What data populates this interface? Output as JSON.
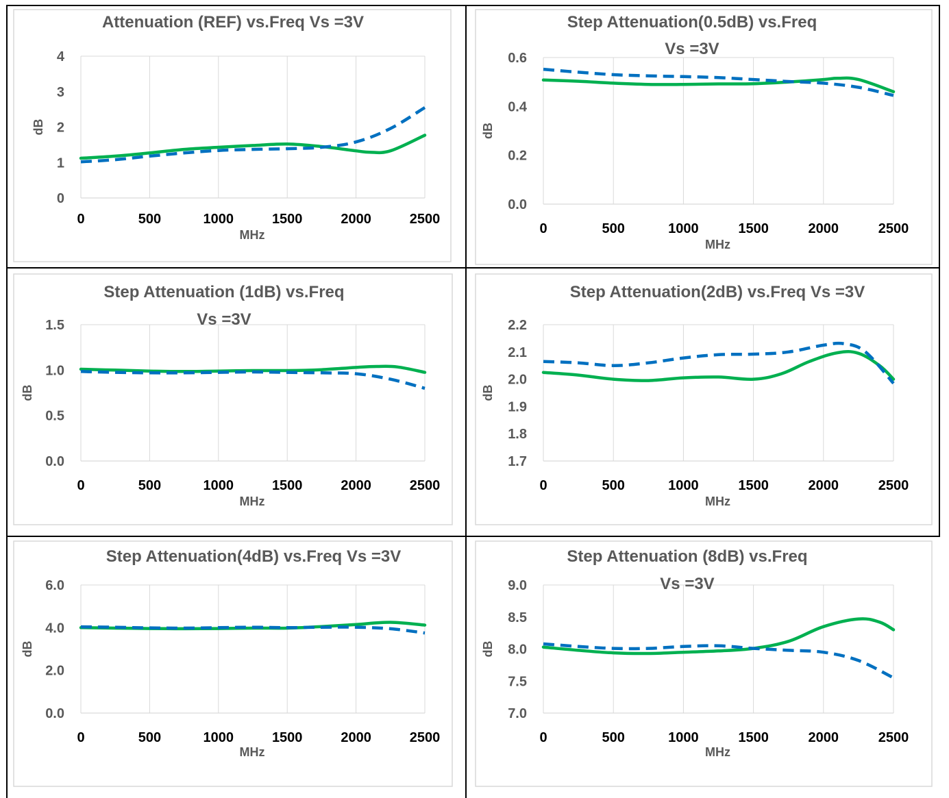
{
  "chart_data": [
    {
      "type": "line",
      "title": "Attenuation (REF) vs.Freq Vs =3V",
      "xlabel": "MHz",
      "ylabel": "dB",
      "xlim": [
        0,
        2500
      ],
      "ylim": [
        0,
        4
      ],
      "xticks": [
        "0",
        "500",
        "1000",
        "1500",
        "2000",
        "2500"
      ],
      "yticks": [
        "0",
        "1",
        "2",
        "3",
        "4"
      ],
      "yticks_values": [
        0,
        1,
        2,
        3,
        4
      ],
      "grid": "vertical",
      "series": [
        {
          "style": "solid",
          "color": "#00b050",
          "x": [
            0,
            250,
            500,
            750,
            1000,
            1250,
            1500,
            1750,
            2000,
            2100,
            2250,
            2500
          ],
          "y": [
            1.12,
            1.18,
            1.27,
            1.37,
            1.43,
            1.48,
            1.52,
            1.45,
            1.33,
            1.29,
            1.33,
            1.77
          ]
        },
        {
          "style": "dashed",
          "color": "#0070c0",
          "x": [
            0,
            250,
            500,
            750,
            1000,
            1250,
            1500,
            1750,
            2000,
            2250,
            2500
          ],
          "y": [
            1.02,
            1.08,
            1.18,
            1.27,
            1.34,
            1.37,
            1.39,
            1.43,
            1.58,
            1.96,
            2.55
          ]
        }
      ]
    },
    {
      "type": "line",
      "title": "Step Attenuation(0.5dB) vs.Freq Vs =3V",
      "title_lines": [
        "Step Attenuation(0.5dB) vs.Freq",
        "Vs =3V"
      ],
      "xlabel": "MHz",
      "ylabel": "dB",
      "xlim": [
        0,
        2500
      ],
      "ylim": [
        0,
        0.6
      ],
      "xticks": [
        "0",
        "500",
        "1000",
        "1500",
        "2000",
        "2500"
      ],
      "yticks": [
        "0.0",
        "0.2",
        "0.4",
        "0.6"
      ],
      "yticks_values": [
        0,
        0.2,
        0.4,
        0.6
      ],
      "grid": "vertical",
      "series": [
        {
          "style": "solid",
          "color": "#00b050",
          "x": [
            0,
            250,
            500,
            750,
            1000,
            1250,
            1500,
            1750,
            2000,
            2100,
            2250,
            2500
          ],
          "y": [
            0.508,
            0.503,
            0.495,
            0.49,
            0.49,
            0.492,
            0.493,
            0.5,
            0.51,
            0.515,
            0.51,
            0.46
          ]
        },
        {
          "style": "dashed",
          "color": "#0070c0",
          "x": [
            0,
            250,
            500,
            750,
            1000,
            1250,
            1500,
            1750,
            2000,
            2250,
            2500
          ],
          "y": [
            0.552,
            0.54,
            0.53,
            0.525,
            0.522,
            0.518,
            0.51,
            0.502,
            0.495,
            0.478,
            0.445
          ]
        }
      ]
    },
    {
      "type": "line",
      "title": "Step Attenuation (1dB) vs.Freq Vs =3V",
      "title_lines": [
        "Step Attenuation (1dB) vs.Freq",
        "Vs =3V"
      ],
      "xlabel": "MHz",
      "ylabel": "dB",
      "xlim": [
        0,
        2500
      ],
      "ylim": [
        0,
        1.5
      ],
      "xticks": [
        "0",
        "500",
        "1000",
        "1500",
        "2000",
        "2500"
      ],
      "yticks": [
        "0.0",
        "0.5",
        "1.0",
        "1.5"
      ],
      "yticks_values": [
        0,
        0.5,
        1.0,
        1.5
      ],
      "grid": "vertical",
      "series": [
        {
          "style": "solid",
          "color": "#00b050",
          "x": [
            0,
            250,
            500,
            750,
            1000,
            1250,
            1500,
            1750,
            2000,
            2150,
            2300,
            2500
          ],
          "y": [
            1.01,
            1.0,
            0.99,
            0.985,
            0.99,
            0.995,
            0.995,
            1.005,
            1.03,
            1.04,
            1.035,
            0.975
          ]
        },
        {
          "style": "dashed",
          "color": "#0070c0",
          "x": [
            0,
            250,
            500,
            750,
            1000,
            1250,
            1500,
            1750,
            2000,
            2250,
            2500
          ],
          "y": [
            0.985,
            0.975,
            0.97,
            0.97,
            0.975,
            0.98,
            0.975,
            0.97,
            0.96,
            0.9,
            0.8
          ]
        }
      ]
    },
    {
      "type": "line",
      "title": "Step Attenuation(2dB) vs.Freq Vs =3V",
      "xlabel": "MHz",
      "ylabel": "dB",
      "xlim": [
        0,
        2500
      ],
      "ylim": [
        1.7,
        2.2
      ],
      "xticks": [
        "0",
        "500",
        "1000",
        "1500",
        "2000",
        "2500"
      ],
      "yticks": [
        "1.7",
        "1.8",
        "1.9",
        "2.0",
        "2.1",
        "2.2"
      ],
      "yticks_values": [
        1.7,
        1.8,
        1.9,
        2.0,
        2.1,
        2.2
      ],
      "grid": "vertical",
      "series": [
        {
          "style": "solid",
          "color": "#00b050",
          "x": [
            0,
            250,
            500,
            750,
            1000,
            1250,
            1500,
            1700,
            1900,
            2100,
            2250,
            2400,
            2500
          ],
          "y": [
            2.025,
            2.015,
            2.0,
            1.995,
            2.005,
            2.008,
            2.0,
            2.02,
            2.065,
            2.097,
            2.095,
            2.05,
            2.0
          ]
        },
        {
          "style": "dashed",
          "color": "#0070c0",
          "x": [
            0,
            250,
            500,
            750,
            1000,
            1250,
            1500,
            1750,
            2000,
            2150,
            2300,
            2500
          ],
          "y": [
            2.065,
            2.06,
            2.05,
            2.06,
            2.078,
            2.09,
            2.092,
            2.1,
            2.125,
            2.13,
            2.1,
            1.985
          ]
        }
      ]
    },
    {
      "type": "line",
      "title": "Step Attenuation(4dB) vs.Freq Vs =3V",
      "xlabel": "MHz",
      "ylabel": "dB",
      "xlim": [
        0,
        2500
      ],
      "ylim": [
        0,
        6
      ],
      "xticks": [
        "0",
        "500",
        "1000",
        "1500",
        "2000",
        "2500"
      ],
      "yticks": [
        "0.0",
        "2.0",
        "4.0",
        "6.0"
      ],
      "yticks_values": [
        0,
        2,
        4,
        6
      ],
      "grid": "vertical",
      "series": [
        {
          "style": "solid",
          "color": "#00b050",
          "x": [
            0,
            250,
            500,
            750,
            1000,
            1250,
            1500,
            1750,
            2000,
            2250,
            2500
          ],
          "y": [
            4.0,
            3.98,
            3.96,
            3.95,
            3.96,
            3.98,
            3.98,
            4.05,
            4.15,
            4.25,
            4.12
          ]
        },
        {
          "style": "dashed",
          "color": "#0070c0",
          "x": [
            0,
            250,
            500,
            750,
            1000,
            1250,
            1500,
            1750,
            2000,
            2250,
            2500
          ],
          "y": [
            4.04,
            4.02,
            3.99,
            3.98,
            4.0,
            4.02,
            4.0,
            4.02,
            4.02,
            3.95,
            3.75
          ]
        }
      ]
    },
    {
      "type": "line",
      "title": "Step Attenuation (8dB) vs.Freq Vs =3V",
      "title_lines": [
        "Step Attenuation (8dB) vs.Freq",
        "Vs =3V"
      ],
      "xlabel": "MHz",
      "ylabel": "dB",
      "xlim": [
        0,
        2500
      ],
      "ylim": [
        7.0,
        9.0
      ],
      "xticks": [
        "0",
        "500",
        "1000",
        "1500",
        "2000",
        "2500"
      ],
      "yticks": [
        "7.0",
        "7.5",
        "8.0",
        "8.5",
        "9.0"
      ],
      "yticks_values": [
        7.0,
        7.5,
        8.0,
        8.5,
        9.0
      ],
      "grid": "vertical",
      "series": [
        {
          "style": "solid",
          "color": "#00b050",
          "x": [
            0,
            250,
            500,
            750,
            1000,
            1250,
            1500,
            1750,
            2000,
            2250,
            2400,
            2500
          ],
          "y": [
            8.03,
            7.98,
            7.94,
            7.93,
            7.95,
            7.97,
            8.01,
            8.12,
            8.35,
            8.47,
            8.42,
            8.3
          ]
        },
        {
          "style": "dashed",
          "color": "#0070c0",
          "x": [
            0,
            250,
            500,
            750,
            1000,
            1250,
            1500,
            1750,
            2000,
            2250,
            2500
          ],
          "y": [
            8.08,
            8.04,
            8.01,
            8.01,
            8.04,
            8.05,
            8.01,
            7.98,
            7.95,
            7.82,
            7.55
          ]
        }
      ]
    }
  ]
}
